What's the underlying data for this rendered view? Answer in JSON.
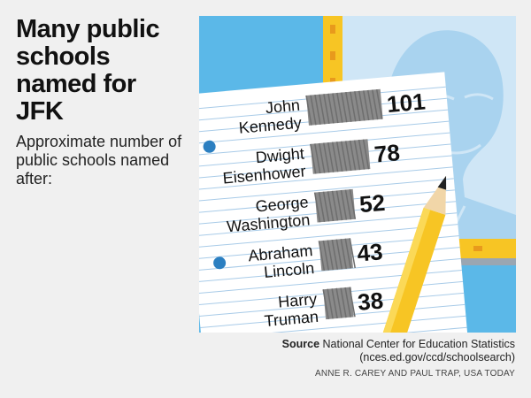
{
  "header": {
    "title": "Many public schools named for JFK",
    "subtitle": "Approximate number of public schools named after:"
  },
  "footer": {
    "source_label": "Source",
    "source_text": "National Center for Education Statistics",
    "source_url": "(nces.ed.gov/ccd/schoolsearch)",
    "credit": "ANNE R. CAREY AND PAUL TRAP, USA TODAY"
  },
  "colors": {
    "sky": "#5bb8e8",
    "portrait": "#a9d3ef",
    "pencil": "#f7c524",
    "paper": "#ffffff",
    "rule": "#a8cbe8",
    "bar": "#8a8a8a",
    "hole": "#2b7fc1"
  },
  "chart_data": {
    "type": "bar",
    "orientation": "horizontal",
    "categories": [
      [
        "John",
        "Kennedy"
      ],
      [
        "Dwight",
        "Eisenhower"
      ],
      [
        "George",
        "Washington"
      ],
      [
        "Abraham",
        "Lincoln"
      ],
      [
        "Harry",
        "Truman"
      ]
    ],
    "values": [
      101,
      78,
      52,
      43,
      38
    ],
    "title": "Many public schools named for JFK",
    "xlabel": "",
    "ylabel": "",
    "xlim": [
      0,
      101
    ],
    "grid": false,
    "legend": "none"
  }
}
